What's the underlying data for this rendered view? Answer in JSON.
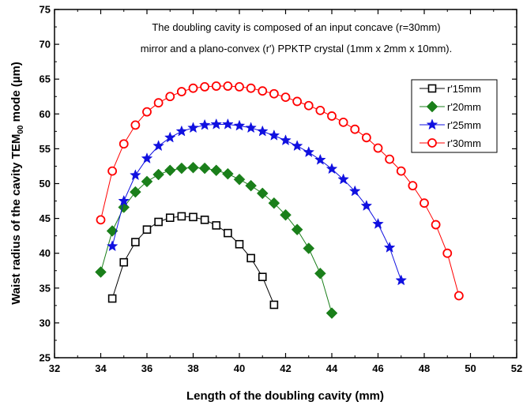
{
  "chart_data": {
    "type": "scatter",
    "title": "",
    "annotation": [
      "The doubling cavity is composed of an input concave (r=30mm)",
      "mirror and a plano-convex (r') PPKTP crystal (1mm x 2mm x 10mm)."
    ],
    "xlabel": "Length of the doubling cavity  (mm)",
    "ylabel_prefix": "Waist radius of the cavity  TEM",
    "ylabel_sub": "00",
    "ylabel_suffix": " mode  (µm)",
    "xlim": [
      32,
      52
    ],
    "ylim": [
      25,
      75
    ],
    "xticks": [
      "32",
      "34",
      "36",
      "38",
      "40",
      "42",
      "44",
      "46",
      "48",
      "50",
      "52"
    ],
    "yticks": [
      "25",
      "30",
      "35",
      "40",
      "45",
      "50",
      "55",
      "60",
      "65",
      "70",
      "75"
    ],
    "grid": false,
    "legend_position": "top-right",
    "series": [
      {
        "name": "r'15mm",
        "marker": "square-open",
        "color": "#000000",
        "x": [
          34.5,
          35.0,
          35.5,
          36.0,
          36.5,
          37.0,
          37.5,
          38.0,
          38.5,
          39.0,
          39.5,
          40.0,
          40.5,
          41.0,
          41.5
        ],
        "y": [
          33.5,
          38.7,
          41.6,
          43.4,
          44.5,
          45.1,
          45.3,
          45.2,
          44.8,
          44.0,
          42.9,
          41.3,
          39.3,
          36.6,
          32.6
        ]
      },
      {
        "name": "r'20mm",
        "marker": "diamond-filled",
        "color": "#1a7f1a",
        "x": [
          34.0,
          34.5,
          35.0,
          35.5,
          36.0,
          36.5,
          37.0,
          37.5,
          38.0,
          38.5,
          39.0,
          39.5,
          40.0,
          40.5,
          41.0,
          41.5,
          42.0,
          42.5,
          43.0,
          43.5,
          44.0
        ],
        "y": [
          37.3,
          43.2,
          46.6,
          48.8,
          50.3,
          51.3,
          51.9,
          52.2,
          52.3,
          52.2,
          51.9,
          51.4,
          50.6,
          49.7,
          48.6,
          47.2,
          45.5,
          43.4,
          40.7,
          37.1,
          31.4
        ]
      },
      {
        "name": "r'25mm",
        "marker": "star-filled",
        "color": "#1010e0",
        "x": [
          34.5,
          35.0,
          35.5,
          36.0,
          36.5,
          37.0,
          37.5,
          38.0,
          38.5,
          39.0,
          39.5,
          40.0,
          40.5,
          41.0,
          41.5,
          42.0,
          42.5,
          43.0,
          43.5,
          44.0,
          44.5,
          45.0,
          45.5,
          46.0,
          46.5,
          47.0
        ],
        "y": [
          41.0,
          47.5,
          51.2,
          53.6,
          55.4,
          56.6,
          57.5,
          58.0,
          58.4,
          58.5,
          58.5,
          58.3,
          58.0,
          57.5,
          56.9,
          56.2,
          55.4,
          54.5,
          53.4,
          52.1,
          50.6,
          48.9,
          46.8,
          44.2,
          40.8,
          36.1
        ]
      },
      {
        "name": "r'30mm",
        "marker": "circle-open",
        "color": "#ff0000",
        "x": [
          34.0,
          34.5,
          35.0,
          35.5,
          36.0,
          36.5,
          37.0,
          37.5,
          38.0,
          38.5,
          39.0,
          39.5,
          40.0,
          40.5,
          41.0,
          41.5,
          42.0,
          42.5,
          43.0,
          43.5,
          44.0,
          44.5,
          45.0,
          45.5,
          46.0,
          46.5,
          47.0,
          47.5,
          48.0,
          48.5,
          49.0,
          49.5
        ],
        "y": [
          44.8,
          51.8,
          55.7,
          58.4,
          60.3,
          61.6,
          62.5,
          63.2,
          63.7,
          63.9,
          64.0,
          64.0,
          63.9,
          63.7,
          63.3,
          62.9,
          62.4,
          61.8,
          61.2,
          60.5,
          59.7,
          58.8,
          57.8,
          56.6,
          55.1,
          53.5,
          51.8,
          49.7,
          47.2,
          44.1,
          40.0,
          33.9
        ]
      }
    ]
  }
}
